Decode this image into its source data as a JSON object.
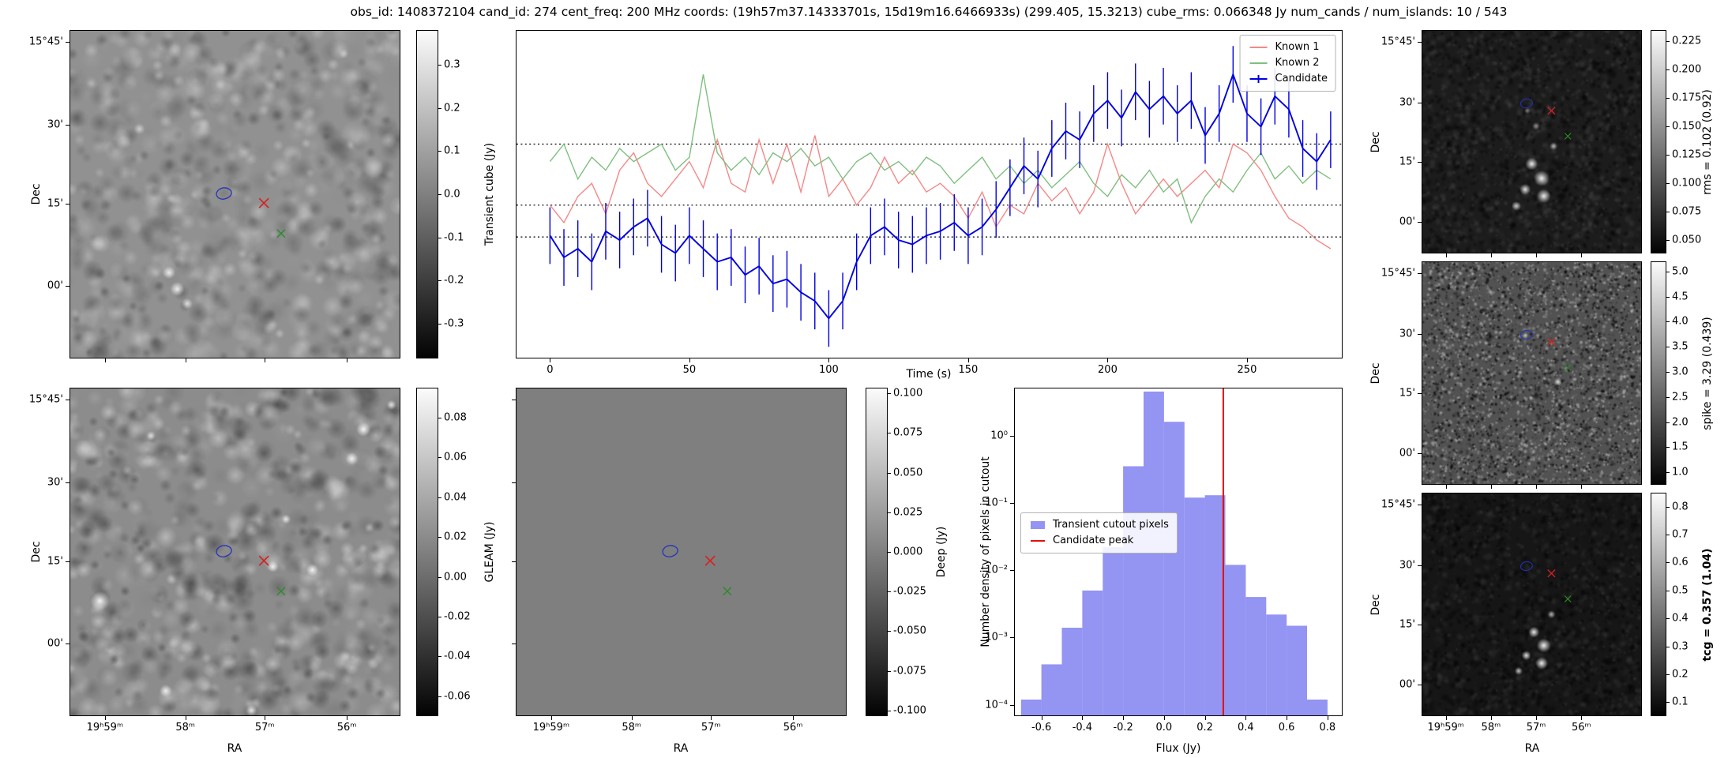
{
  "title": "obs_id: 1408372104 cand_id: 274 cent_freq: 200 MHz coords: (19h57m37.14333701s, 15d19m16.6466933s) (299.405, 15.3213) cube_rms: 0.066348 Jy num_cands / num_islands: 10 / 543",
  "axis_labels": {
    "dec": "Dec",
    "ra": "RA",
    "hist_y": "Number density of pixels in cutout"
  },
  "dec_ticks": {
    "labels": [
      "15°45'",
      "30'",
      "15'",
      "00'"
    ]
  },
  "ra_ticks": {
    "labels": [
      "19ʰ59ᵐ",
      "58ᵐ",
      "57ᵐ",
      "56ᵐ"
    ]
  },
  "colorbars": {
    "transient": {
      "label": "Transient cube (Jy)",
      "vmax": 0.38,
      "vmin": -0.38,
      "ticks": [
        [
          0.3,
          "0.3"
        ],
        [
          0.2,
          "0.2"
        ],
        [
          0.1,
          "0.1"
        ],
        [
          0.0,
          "0.0"
        ],
        [
          -0.1,
          "-0.1"
        ],
        [
          -0.2,
          "-0.2"
        ],
        [
          -0.3,
          "-0.3"
        ]
      ]
    },
    "gleam": {
      "label": "GLEAM (Jy)",
      "vmax": 0.095,
      "vmin": -0.07,
      "ticks": [
        [
          0.08,
          "0.08"
        ],
        [
          0.06,
          "0.06"
        ],
        [
          0.04,
          "0.04"
        ],
        [
          0.02,
          "0.02"
        ],
        [
          0.0,
          "0.00"
        ],
        [
          -0.02,
          "-0.02"
        ],
        [
          -0.04,
          "-0.04"
        ],
        [
          -0.06,
          "-0.06"
        ]
      ]
    },
    "deep": {
      "label": "Deep (Jy)",
      "vmax": 0.1035,
      "vmin": -0.1035,
      "ticks": [
        [
          0.1,
          "0.100"
        ],
        [
          0.075,
          "0.075"
        ],
        [
          0.05,
          "0.050"
        ],
        [
          0.025,
          "0.025"
        ],
        [
          0.0,
          "0.000"
        ],
        [
          -0.025,
          "-0.025"
        ],
        [
          -0.05,
          "-0.050"
        ],
        [
          -0.075,
          "-0.075"
        ],
        [
          -0.1,
          "-0.100"
        ]
      ]
    },
    "rms": {
      "label": "rms = 0.102 (0.92)",
      "vmax": 0.235,
      "vmin": 0.038,
      "ticks": [
        [
          0.225,
          "0.225"
        ],
        [
          0.2,
          "0.200"
        ],
        [
          0.175,
          "0.175"
        ],
        [
          0.15,
          "0.150"
        ],
        [
          0.125,
          "0.125"
        ],
        [
          0.1,
          "0.100"
        ],
        [
          0.075,
          "0.075"
        ],
        [
          0.05,
          "0.050"
        ]
      ]
    },
    "spike": {
      "label": "spike = 3.29 (0.439)",
      "vmax": 5.2,
      "vmin": 0.75,
      "ticks": [
        [
          5.0,
          "5.0"
        ],
        [
          4.5,
          "4.5"
        ],
        [
          4.0,
          "4.0"
        ],
        [
          3.5,
          "3.5"
        ],
        [
          3.0,
          "3.0"
        ],
        [
          2.5,
          "2.5"
        ],
        [
          2.0,
          "2.0"
        ],
        [
          1.5,
          "1.5"
        ],
        [
          1.0,
          "1.0"
        ]
      ]
    },
    "tcg": {
      "label": "tcg = 0.357 (1.04)",
      "bold": true,
      "vmax": 0.85,
      "vmin": 0.05,
      "ticks": [
        [
          0.8,
          "0.8"
        ],
        [
          0.7,
          "0.7"
        ],
        [
          0.6,
          "0.6"
        ],
        [
          0.5,
          "0.5"
        ],
        [
          0.4,
          "0.4"
        ],
        [
          0.3,
          "0.3"
        ],
        [
          0.2,
          "0.2"
        ],
        [
          0.1,
          "0.1"
        ]
      ]
    }
  },
  "chart_data": [
    {
      "id": "lightcurve",
      "type": "line",
      "xlabel": "Time (s)",
      "xlim": [
        -12,
        284
      ],
      "ylim": [
        -0.35,
        0.4
      ],
      "x_ticks": [
        0,
        50,
        100,
        150,
        200,
        250
      ],
      "threshold_lines": [
        0.14,
        0.0,
        -0.073
      ],
      "legend_position": "upper right",
      "x": [
        0,
        5,
        10,
        15,
        20,
        25,
        30,
        35,
        40,
        45,
        50,
        55,
        60,
        65,
        70,
        75,
        80,
        85,
        90,
        95,
        100,
        105,
        110,
        115,
        120,
        125,
        130,
        135,
        140,
        145,
        150,
        155,
        160,
        165,
        170,
        175,
        180,
        185,
        190,
        195,
        200,
        205,
        210,
        215,
        220,
        225,
        230,
        235,
        240,
        245,
        250,
        255,
        260,
        265,
        270,
        275,
        280
      ],
      "series": [
        {
          "name": "Known 1",
          "color": "#f58787",
          "values": [
            0.0,
            -0.04,
            0.02,
            0.05,
            -0.02,
            0.08,
            0.12,
            0.05,
            0.02,
            0.06,
            0.1,
            0.04,
            0.15,
            0.05,
            0.03,
            0.15,
            0.05,
            0.14,
            0.03,
            0.16,
            0.02,
            0.06,
            0.0,
            0.04,
            0.11,
            0.05,
            0.08,
            0.03,
            0.05,
            0.02,
            -0.03,
            0.03,
            -0.05,
            0.0,
            -0.02,
            0.05,
            0.01,
            0.04,
            -0.02,
            0.03,
            0.14,
            0.05,
            -0.02,
            0.02,
            0.06,
            0.02,
            0.05,
            0.08,
            0.04,
            0.14,
            0.12,
            0.08,
            0.02,
            -0.03,
            -0.05,
            -0.08,
            -0.1
          ]
        },
        {
          "name": "Known 2",
          "color": "#7fbf7f",
          "values": [
            0.1,
            0.14,
            0.06,
            0.11,
            0.08,
            0.13,
            0.1,
            0.12,
            0.14,
            0.08,
            0.11,
            0.3,
            0.12,
            0.08,
            0.11,
            0.07,
            0.12,
            0.1,
            0.13,
            0.09,
            0.11,
            0.06,
            0.1,
            0.12,
            0.08,
            0.1,
            0.07,
            0.11,
            0.09,
            0.05,
            0.08,
            0.11,
            0.06,
            0.09,
            0.05,
            0.08,
            0.04,
            0.07,
            0.1,
            0.05,
            0.02,
            0.07,
            0.04,
            0.08,
            0.03,
            0.06,
            -0.04,
            0.02,
            0.06,
            0.03,
            0.08,
            0.12,
            0.06,
            0.09,
            0.05,
            0.08,
            0.06
          ]
        },
        {
          "name": "Candidate",
          "color": "#0000e0",
          "yerr": 0.065,
          "values": [
            -0.07,
            -0.12,
            -0.1,
            -0.13,
            -0.06,
            -0.08,
            -0.05,
            -0.03,
            -0.09,
            -0.11,
            -0.07,
            -0.1,
            -0.13,
            -0.12,
            -0.16,
            -0.14,
            -0.18,
            -0.17,
            -0.2,
            -0.22,
            -0.26,
            -0.22,
            -0.13,
            -0.07,
            -0.05,
            -0.08,
            -0.09,
            -0.07,
            -0.06,
            -0.04,
            -0.07,
            -0.05,
            -0.01,
            0.04,
            0.09,
            0.06,
            0.13,
            0.17,
            0.15,
            0.21,
            0.24,
            0.2,
            0.26,
            0.22,
            0.25,
            0.21,
            0.24,
            0.16,
            0.21,
            0.3,
            0.21,
            0.18,
            0.25,
            0.22,
            0.13,
            0.1,
            0.15
          ]
        }
      ]
    },
    {
      "id": "flux-histogram",
      "type": "bar",
      "xlabel": "Flux (Jy)",
      "ylabel": "Number density of pixels in cutout",
      "y_scale": "log",
      "xlim": [
        -0.73,
        0.87
      ],
      "ylim": [
        7e-05,
        5
      ],
      "x_ticks": [
        -0.6,
        -0.4,
        -0.2,
        0.0,
        0.2,
        0.4,
        0.6,
        0.8
      ],
      "y_ticks": [
        [
          1,
          "10⁰"
        ],
        [
          0.1,
          "10⁻¹"
        ],
        [
          0.01,
          "10⁻²"
        ],
        [
          0.001,
          "10⁻³"
        ],
        [
          0.0001,
          "10⁻⁴"
        ]
      ],
      "bin_edges": [
        -0.7,
        -0.6,
        -0.5,
        -0.4,
        -0.3,
        -0.2,
        -0.1,
        0.0,
        0.1,
        0.2,
        0.3,
        0.4,
        0.5,
        0.6,
        0.7,
        0.8
      ],
      "densities": [
        0.00012,
        0.0004,
        0.0014,
        0.005,
        0.022,
        0.35,
        4.5,
        1.6,
        0.12,
        0.13,
        0.012,
        0.004,
        0.0022,
        0.0015,
        0.00012
      ],
      "bar_color": "#9494f3",
      "candidate_peak_x": 0.29,
      "peak_line_color": "#e01010",
      "legend": [
        {
          "label": "Transient cutout pixels",
          "type": "patch"
        },
        {
          "label": "Candidate peak",
          "type": "line"
        }
      ]
    },
    {
      "id": "image-cutouts",
      "type": "heatmap",
      "axes": {
        "x": "RA",
        "y": "Dec"
      },
      "panels": [
        {
          "name": "Transient cube (Jy)",
          "vmin": -0.3,
          "vmax": 0.3
        },
        {
          "name": "GLEAM (Jy)",
          "vmin": -0.06,
          "vmax": 0.08
        },
        {
          "name": "Deep (Jy)",
          "vmin": -0.1,
          "vmax": 0.1
        },
        {
          "name": "rms = 0.102 (0.92)",
          "vmin": 0.05,
          "vmax": 0.225
        },
        {
          "name": "spike = 3.29 (0.439)",
          "vmin": 1.0,
          "vmax": 5.0
        },
        {
          "name": "tcg = 0.357 (1.04)",
          "vmin": 0.1,
          "vmax": 0.8
        }
      ]
    }
  ]
}
